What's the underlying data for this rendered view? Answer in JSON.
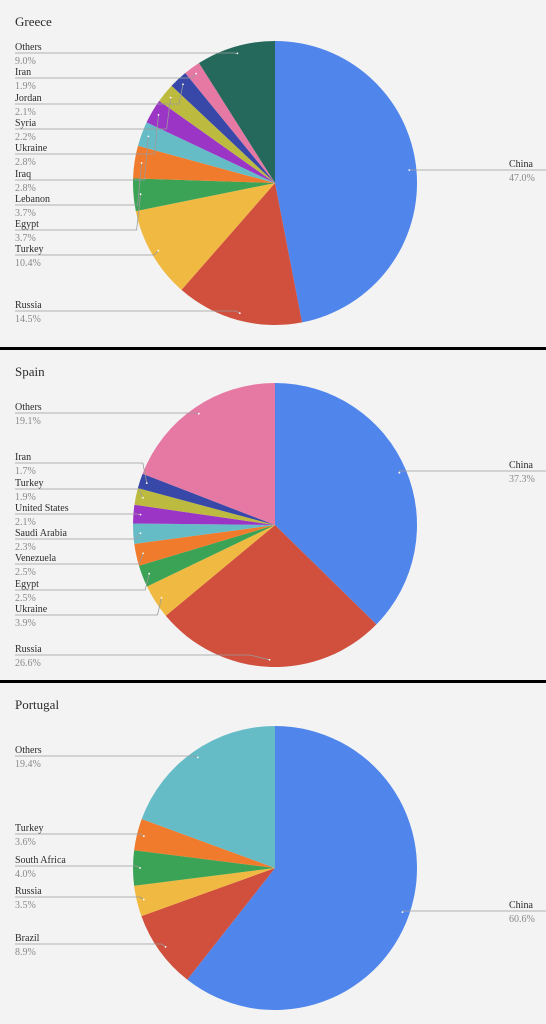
{
  "chart_data": [
    {
      "type": "pie",
      "title": "Greece",
      "slices": [
        {
          "label": "China",
          "value": 47.0,
          "pct_label": "47.0%",
          "color": "#5086ec"
        },
        {
          "label": "Russia",
          "value": 14.5,
          "pct_label": "14.5%",
          "color": "#d14f3d"
        },
        {
          "label": "Turkey",
          "value": 10.4,
          "pct_label": "10.4%",
          "color": "#f0b941"
        },
        {
          "label": "Egypt",
          "value": 3.7,
          "pct_label": "3.7%",
          "color": "#3ba355"
        },
        {
          "label": "Lebanon",
          "value": 3.7,
          "pct_label": "3.7%",
          "color": "#f07b2c"
        },
        {
          "label": "Iraq",
          "value": 2.8,
          "pct_label": "2.8%",
          "color": "#65bcc7"
        },
        {
          "label": "Ukraine",
          "value": 2.8,
          "pct_label": "2.8%",
          "color": "#9b35c6"
        },
        {
          "label": "Syria",
          "value": 2.2,
          "pct_label": "2.2%",
          "color": "#bdbb3f"
        },
        {
          "label": "Jordan",
          "value": 2.1,
          "pct_label": "2.1%",
          "color": "#3848a8"
        },
        {
          "label": "Iran",
          "value": 1.9,
          "pct_label": "1.9%",
          "color": "#e679a4"
        },
        {
          "label": "Others",
          "value": 9.0,
          "pct_label": "9.0%",
          "color": "#25695c"
        }
      ]
    },
    {
      "type": "pie",
      "title": "Spain",
      "slices": [
        {
          "label": "China",
          "value": 37.3,
          "pct_label": "37.3%",
          "color": "#5086ec"
        },
        {
          "label": "Russia",
          "value": 26.6,
          "pct_label": "26.6%",
          "color": "#d14f3d"
        },
        {
          "label": "Ukraine",
          "value": 3.9,
          "pct_label": "3.9%",
          "color": "#f0b941"
        },
        {
          "label": "Egypt",
          "value": 2.5,
          "pct_label": "2.5%",
          "color": "#3ba355"
        },
        {
          "label": "Venezuela",
          "value": 2.5,
          "pct_label": "2.5%",
          "color": "#f07b2c"
        },
        {
          "label": "Saudi Arabia",
          "value": 2.3,
          "pct_label": "2.3%",
          "color": "#65bcc7"
        },
        {
          "label": "United States",
          "value": 2.1,
          "pct_label": "2.1%",
          "color": "#9b35c6"
        },
        {
          "label": "Turkey",
          "value": 1.9,
          "pct_label": "1.9%",
          "color": "#bdbb3f"
        },
        {
          "label": "Iran",
          "value": 1.7,
          "pct_label": "1.7%",
          "color": "#3848a8"
        },
        {
          "label": "Others",
          "value": 19.1,
          "pct_label": "19.1%",
          "color": "#e679a4"
        }
      ]
    },
    {
      "type": "pie",
      "title": "Portugal",
      "slices": [
        {
          "label": "China",
          "value": 60.6,
          "pct_label": "60.6%",
          "color": "#5086ec"
        },
        {
          "label": "Brazil",
          "value": 8.9,
          "pct_label": "8.9%",
          "color": "#d14f3d"
        },
        {
          "label": "Russia",
          "value": 3.5,
          "pct_label": "3.5%",
          "color": "#f0b941"
        },
        {
          "label": "South Africa",
          "value": 4.0,
          "pct_label": "4.0%",
          "color": "#3ba355"
        },
        {
          "label": "Turkey",
          "value": 3.6,
          "pct_label": "3.6%",
          "color": "#f07b2c"
        },
        {
          "label": "Others",
          "value": 19.4,
          "pct_label": "19.4%",
          "color": "#65bcc7"
        }
      ]
    }
  ]
}
